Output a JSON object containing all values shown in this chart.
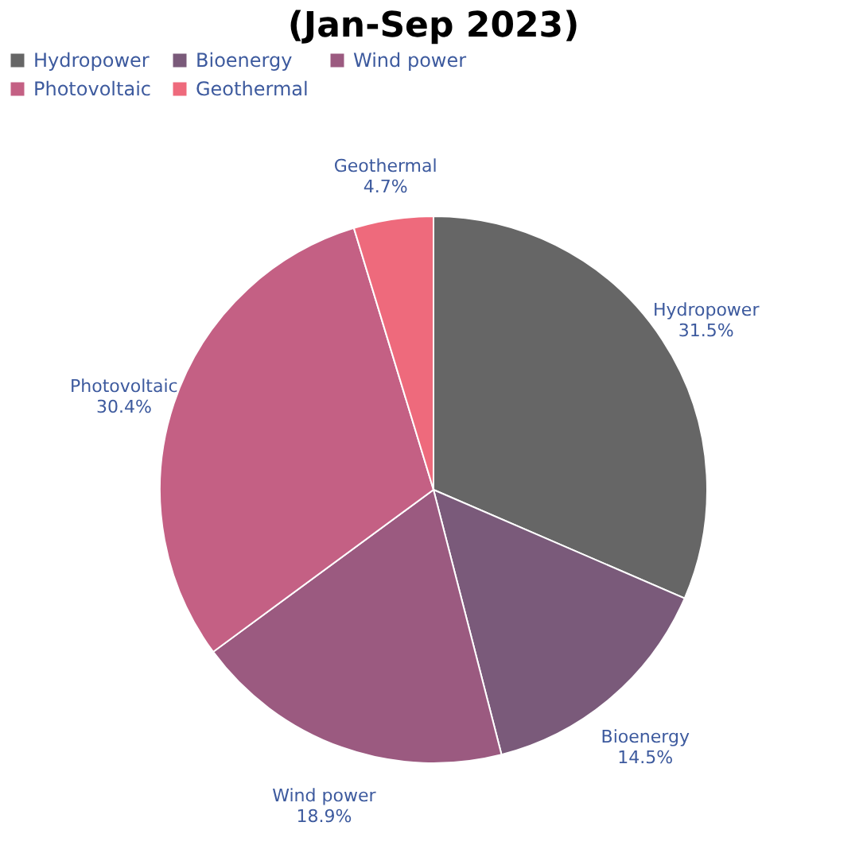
{
  "chart_data": {
    "type": "pie",
    "title": "(Jan-Sep 2023)",
    "categories": [
      "Hydropower",
      "Bioenergy",
      "Wind power",
      "Photovoltaic",
      "Geothermal"
    ],
    "values": [
      31.5,
      14.5,
      18.9,
      30.4,
      4.7
    ],
    "colors": [
      "#666666",
      "#7a5a7a",
      "#9b5a80",
      "#c46084",
      "#ee6a7c"
    ],
    "value_labels": [
      "31.5%",
      "14.5%",
      "18.9%",
      "30.4%",
      "4.7%"
    ],
    "legend": "top"
  }
}
